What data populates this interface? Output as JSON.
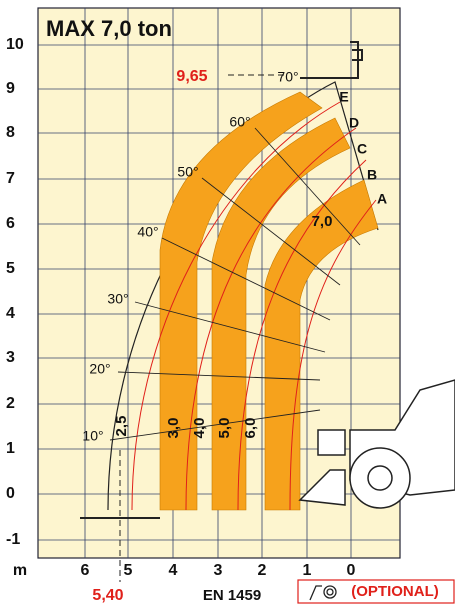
{
  "title": "MAX 7,0 ton",
  "y_axis_labels": [
    "10",
    "9",
    "8",
    "7",
    "6",
    "5",
    "4",
    "3",
    "2",
    "1",
    "0",
    "-1"
  ],
  "x_axis_labels": [
    "m",
    "6",
    "5",
    "4",
    "3",
    "2",
    "1",
    "0"
  ],
  "angle_labels": [
    "10°",
    "20°",
    "30°",
    "40°",
    "50°",
    "60°",
    "70°"
  ],
  "load_labels": [
    "2,5",
    "3,0",
    "4,0",
    "5,0",
    "6,0",
    "7,0"
  ],
  "zone_labels": [
    "A",
    "B",
    "C",
    "D",
    "E"
  ],
  "max_height": "9,65",
  "max_reach": "5,40",
  "standard": "EN 1459",
  "optional": "(OPTIONAL)"
}
